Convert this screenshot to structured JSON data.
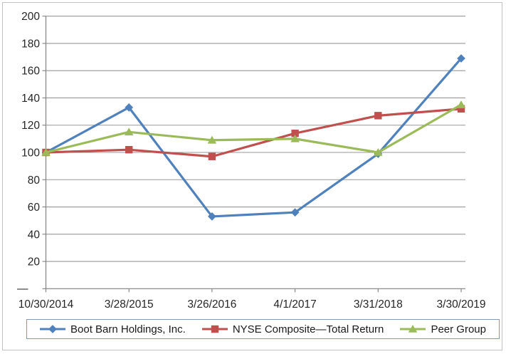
{
  "chart_data": {
    "type": "line",
    "title": "",
    "x_categories": [
      "10/30/2014",
      "3/28/2015",
      "3/26/2016",
      "4/1/2017",
      "3/31/2018",
      "3/30/2019"
    ],
    "y_axis": {
      "min": 0,
      "max": 200,
      "step": 20,
      "tick_labels": [
        "—",
        "20",
        "40",
        "60",
        "80",
        "100",
        "120",
        "140",
        "160",
        "180",
        "200"
      ]
    },
    "grid": "horizontal",
    "legend_position": "bottom",
    "series": [
      {
        "name": "Boot Barn Holdings, Inc.",
        "marker": "diamond",
        "color": "#4F81BD",
        "values": [
          100,
          133,
          53,
          56,
          99,
          169
        ]
      },
      {
        "name": "NYSE Composite—Total Return",
        "marker": "square",
        "color": "#C0504D",
        "values": [
          100,
          102,
          97,
          114,
          127,
          132
        ]
      },
      {
        "name": "Peer Group",
        "marker": "triangle",
        "color": "#9BBB59",
        "values": [
          100,
          115,
          109,
          110,
          100,
          135
        ]
      }
    ]
  },
  "colors": {
    "gridline": "#979797",
    "axis": "#808080",
    "tick_text": "#262626",
    "chart_border": "#c3c3c3",
    "legend_border": "#7f9db9",
    "background": "#ffffff"
  }
}
